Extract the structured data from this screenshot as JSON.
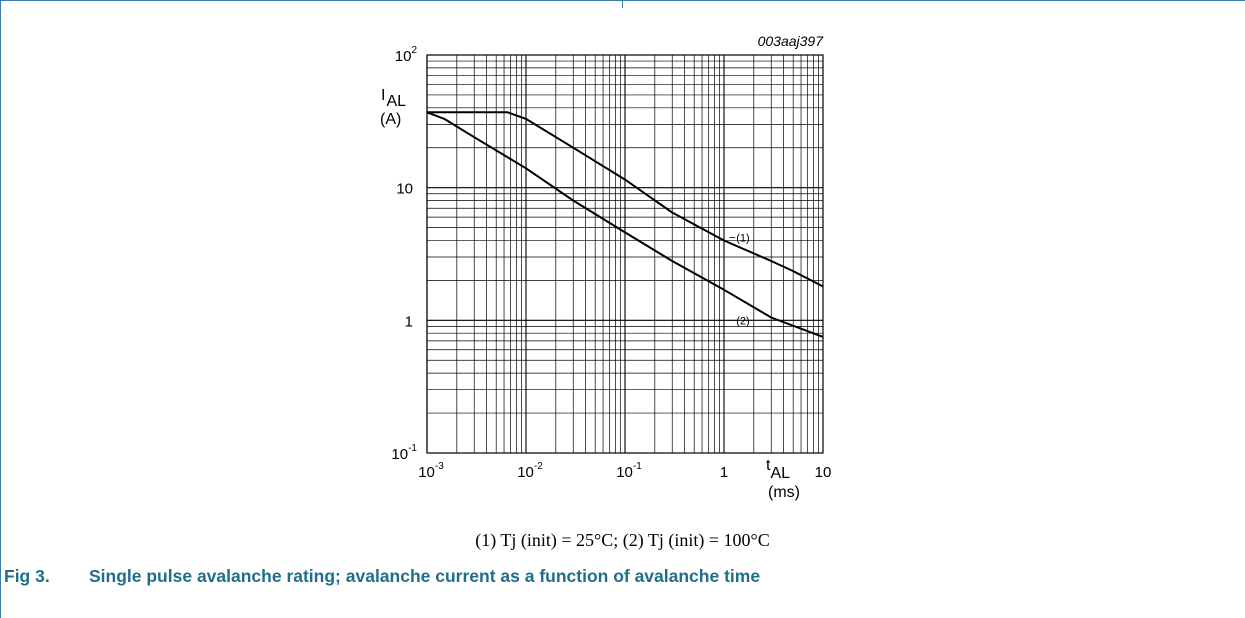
{
  "figure": {
    "code": "003aaj397",
    "number": "Fig 3.",
    "caption": "Single pulse avalanche rating; avalanche current as a function of avalanche time",
    "condition_note": "(1) Tj (init) = 25°C; (2) Tj (init) = 100°C",
    "caption_color": "#1f6f8b",
    "frame_color": "#3a7fa0"
  },
  "chart_data": {
    "type": "line",
    "x_scale": "log",
    "y_scale": "log",
    "xlim": [
      0.001,
      10
    ],
    "ylim": [
      0.1,
      100
    ],
    "grid": true,
    "x_label": "t",
    "x_label_sub": "AL",
    "x_unit": "(ms)",
    "y_label": "I",
    "y_label_sub": "AL",
    "y_unit": "(A)",
    "x_ticks": [
      {
        "value": 0.001,
        "base": "10",
        "exp": "-3"
      },
      {
        "value": 0.01,
        "base": "10",
        "exp": "-2"
      },
      {
        "value": 0.1,
        "base": "10",
        "exp": "-1"
      },
      {
        "value": 1,
        "base": "1",
        "exp": ""
      },
      {
        "value": 10,
        "base": "10",
        "exp": ""
      }
    ],
    "y_ticks": [
      {
        "value": 0.1,
        "base": "10",
        "exp": "-1"
      },
      {
        "value": 1,
        "base": "1",
        "exp": ""
      },
      {
        "value": 10,
        "base": "10",
        "exp": ""
      },
      {
        "value": 100,
        "base": "10",
        "exp": "2"
      }
    ],
    "series": [
      {
        "name": "(1)",
        "x": [
          0.001,
          0.0065,
          0.01,
          0.03,
          0.1,
          0.3,
          1,
          3,
          5,
          10
        ],
        "y": [
          37,
          37,
          33,
          20,
          11.5,
          6.5,
          4.0,
          2.8,
          2.35,
          1.8
        ]
      },
      {
        "name": "(2)",
        "x": [
          0.001,
          0.0015,
          0.003,
          0.01,
          0.03,
          0.1,
          0.3,
          1,
          3,
          10
        ],
        "y": [
          37,
          33,
          24,
          14,
          8.0,
          4.6,
          2.8,
          1.7,
          1.05,
          0.75
        ]
      }
    ],
    "series_labels": [
      {
        "text": "(1)",
        "x": 1.3,
        "y": 4.2
      },
      {
        "text": "(2)",
        "x": 1.3,
        "y": 1.0
      }
    ]
  }
}
